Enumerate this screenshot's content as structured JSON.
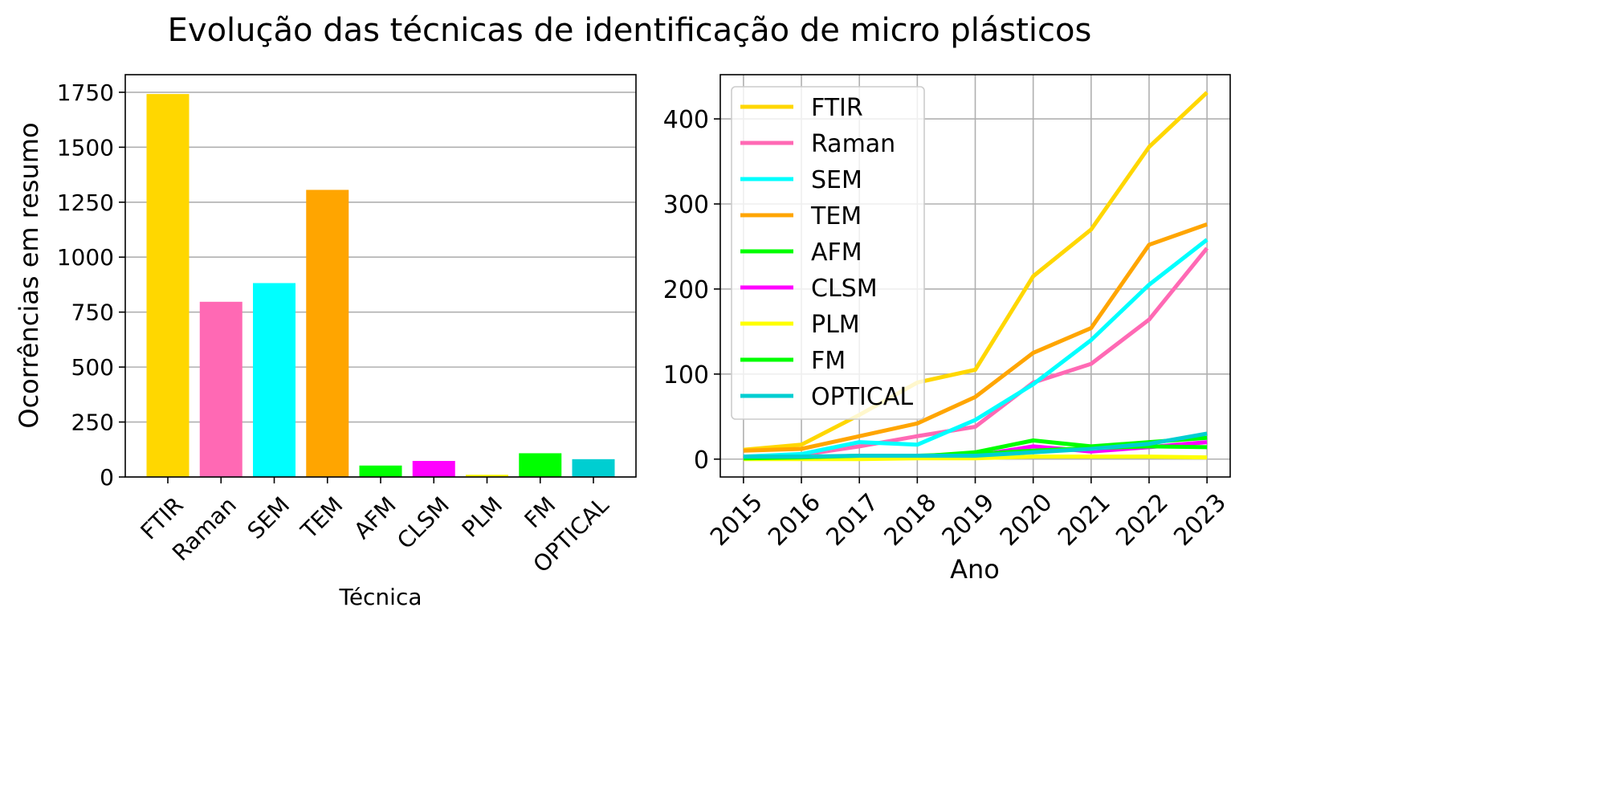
{
  "title": "Evolução das técnicas de identificação de micro plásticos",
  "chart_data": [
    {
      "type": "bar",
      "title": "",
      "xlabel": "Técnica",
      "ylabel": "Ocorrências em resumo",
      "categories": [
        "FTIR",
        "Raman",
        "SEM",
        "TEM",
        "AFM",
        "CLSM",
        "PLM",
        "FM",
        "OPTICAL"
      ],
      "values": [
        1742,
        797,
        882,
        1306,
        52,
        73,
        10,
        108,
        81
      ],
      "colors": [
        "#ffd700",
        "#ff69b4",
        "#00ffff",
        "#ffa500",
        "#00ff00",
        "#ff00ff",
        "#ffff00",
        "#00ff00",
        "#00ced1"
      ],
      "ylim": [
        0,
        1830
      ],
      "yticks": [
        0,
        250,
        500,
        750,
        1000,
        1250,
        1500,
        1750
      ],
      "grid": "y",
      "legend": "none"
    },
    {
      "type": "line",
      "title": "",
      "xlabel": "Ano",
      "ylabel": "",
      "x": [
        2015,
        2016,
        2017,
        2018,
        2019,
        2020,
        2021,
        2022,
        2023
      ],
      "xlim": [
        2014.6,
        2023.4
      ],
      "ylim": [
        -21,
        452
      ],
      "yticks": [
        0,
        100,
        200,
        300,
        400
      ],
      "grid": "both",
      "legend": "upper-left",
      "series": [
        {
          "name": "FTIR",
          "color": "#ffd700",
          "values": [
            11,
            17,
            52,
            90,
            105,
            215,
            270,
            367,
            431
          ]
        },
        {
          "name": "Raman",
          "color": "#ff69b4",
          "values": [
            3,
            5,
            15,
            27,
            38,
            90,
            112,
            164,
            248
          ]
        },
        {
          "name": "SEM",
          "color": "#00ffff",
          "values": [
            3,
            6,
            20,
            17,
            46,
            88,
            140,
            205,
            258
          ]
        },
        {
          "name": "TEM",
          "color": "#ffa500",
          "values": [
            10,
            12,
            27,
            42,
            73,
            125,
            154,
            252,
            276
          ]
        },
        {
          "name": "AFM",
          "color": "#00ff00",
          "values": [
            1,
            1,
            2,
            3,
            8,
            22,
            15,
            20,
            25
          ]
        },
        {
          "name": "CLSM",
          "color": "#ff00ff",
          "values": [
            1,
            2,
            3,
            3,
            4,
            15,
            9,
            14,
            20
          ]
        },
        {
          "name": "PLM",
          "color": "#ffff00",
          "values": [
            0,
            0,
            0,
            1,
            1,
            3,
            3,
            3,
            2
          ]
        },
        {
          "name": "FM",
          "color": "#00ff00",
          "values": [
            1,
            2,
            4,
            4,
            6,
            10,
            13,
            15,
            14
          ]
        },
        {
          "name": "OPTICAL",
          "color": "#00ced1",
          "values": [
            3,
            3,
            4,
            4,
            4,
            8,
            12,
            18,
            30
          ]
        }
      ]
    }
  ]
}
